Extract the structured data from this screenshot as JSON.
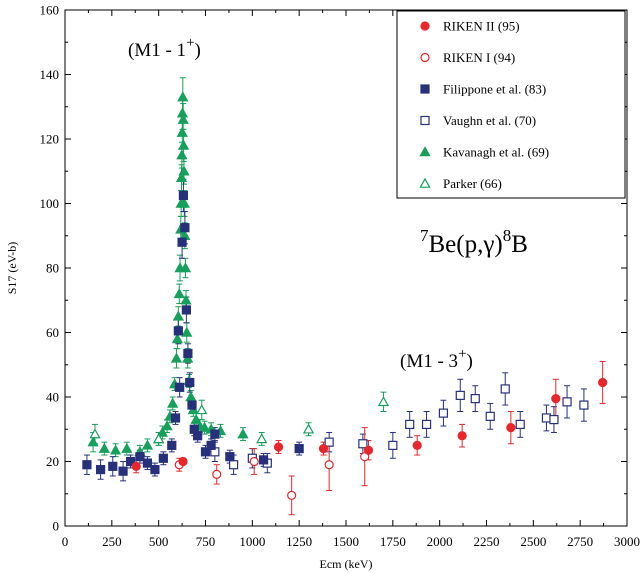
{
  "chart_data": {
    "type": "scatter",
    "xlabel": "Ecm (keV)",
    "ylabel": "S17 (eV-b)",
    "xlim": [
      0,
      3000
    ],
    "ylim": [
      0,
      160
    ],
    "xticks": [
      0,
      250,
      500,
      750,
      1000,
      1250,
      1500,
      1750,
      2000,
      2250,
      2500,
      2750,
      3000
    ],
    "yticks": [
      0,
      20,
      40,
      60,
      80,
      100,
      120,
      140,
      160
    ],
    "grid": false,
    "legend_position": "top-right",
    "annotations": {
      "reaction": {
        "pre": "7",
        "a": "Be(p,",
        "g": "γ",
        "b": ")",
        "mid": "8",
        "post": "B"
      },
      "peak1": {
        "pre": "(M1 - 1",
        "sup": "+",
        "post": ")"
      },
      "peak2": {
        "pre": "(M1 - 3",
        "sup": "+",
        "post": ")"
      }
    },
    "series": [
      {
        "name": "RIKEN II (95)",
        "marker": "circle-filled",
        "color": "#e8262b",
        "points": [
          {
            "x": 380,
            "y": 18.5,
            "err": 2
          },
          {
            "x": 630,
            "y": 20,
            "err": 1
          },
          {
            "x": 1140,
            "y": 24.5,
            "err": 2
          },
          {
            "x": 1380,
            "y": 24,
            "err": 2
          },
          {
            "x": 1620,
            "y": 23.5,
            "err": 3
          },
          {
            "x": 1880,
            "y": 25,
            "err": 3
          },
          {
            "x": 2120,
            "y": 28,
            "err": 3.5
          },
          {
            "x": 2380,
            "y": 30.5,
            "err": 5
          },
          {
            "x": 2620,
            "y": 39.5,
            "err": 6
          },
          {
            "x": 2870,
            "y": 44.5,
            "err": 6.5
          }
        ]
      },
      {
        "name": "RIKEN I (94)",
        "marker": "circle-open",
        "color": "#e8262b",
        "points": [
          {
            "x": 610,
            "y": 19,
            "err": 2
          },
          {
            "x": 810,
            "y": 16,
            "err": 3
          },
          {
            "x": 1010,
            "y": 20,
            "err": 4
          },
          {
            "x": 1210,
            "y": 9.5,
            "err": 6
          },
          {
            "x": 1410,
            "y": 19,
            "err": 8
          },
          {
            "x": 1600,
            "y": 21.5,
            "err": 9
          }
        ]
      },
      {
        "name": "Filippone et al. (83)",
        "marker": "square-filled",
        "color": "#27307a",
        "points": [
          {
            "x": 117,
            "y": 19,
            "err": 3
          },
          {
            "x": 190,
            "y": 17.5,
            "err": 3
          },
          {
            "x": 255,
            "y": 18.5,
            "err": 3
          },
          {
            "x": 310,
            "y": 17,
            "err": 3
          },
          {
            "x": 350,
            "y": 20,
            "err": 2
          },
          {
            "x": 400,
            "y": 21.5,
            "err": 2
          },
          {
            "x": 440,
            "y": 19.5,
            "err": 2
          },
          {
            "x": 480,
            "y": 17.5,
            "err": 2
          },
          {
            "x": 525,
            "y": 21,
            "err": 2
          },
          {
            "x": 570,
            "y": 25,
            "err": 2
          },
          {
            "x": 590,
            "y": 33.5,
            "err": 2
          },
          {
            "x": 605,
            "y": 60.5,
            "err": 4
          },
          {
            "x": 612,
            "y": 43,
            "err": 3
          },
          {
            "x": 625,
            "y": 88,
            "err": 5
          },
          {
            "x": 632,
            "y": 102.5,
            "err": 5
          },
          {
            "x": 640,
            "y": 92.5,
            "err": 5
          },
          {
            "x": 648,
            "y": 67,
            "err": 4
          },
          {
            "x": 656,
            "y": 53.5,
            "err": 3
          },
          {
            "x": 666,
            "y": 44.5,
            "err": 3
          },
          {
            "x": 678,
            "y": 37.5,
            "err": 2
          },
          {
            "x": 690,
            "y": 30,
            "err": 2
          },
          {
            "x": 708,
            "y": 28,
            "err": 2
          },
          {
            "x": 750,
            "y": 23,
            "err": 2
          },
          {
            "x": 780,
            "y": 25,
            "err": 2
          },
          {
            "x": 800,
            "y": 28.5,
            "err": 2
          },
          {
            "x": 880,
            "y": 21.5,
            "err": 2
          },
          {
            "x": 1060,
            "y": 20.5,
            "err": 2
          },
          {
            "x": 1250,
            "y": 24,
            "err": 2
          }
        ]
      },
      {
        "name": "Vaughn et al. (70)",
        "marker": "square-open",
        "color": "#27307a",
        "points": [
          {
            "x": 800,
            "y": 23,
            "err": 3
          },
          {
            "x": 900,
            "y": 19,
            "err": 3
          },
          {
            "x": 1000,
            "y": 21,
            "err": 3
          },
          {
            "x": 1080,
            "y": 19.5,
            "err": 3
          },
          {
            "x": 1410,
            "y": 26,
            "err": 3
          },
          {
            "x": 1590,
            "y": 25.5,
            "err": 3
          },
          {
            "x": 1750,
            "y": 25,
            "err": 4
          },
          {
            "x": 1840,
            "y": 31.5,
            "err": 4
          },
          {
            "x": 1930,
            "y": 31.5,
            "err": 4
          },
          {
            "x": 2020,
            "y": 35,
            "err": 4
          },
          {
            "x": 2110,
            "y": 40.5,
            "err": 5
          },
          {
            "x": 2190,
            "y": 39.5,
            "err": 4
          },
          {
            "x": 2270,
            "y": 34,
            "err": 4
          },
          {
            "x": 2350,
            "y": 42.5,
            "err": 5
          },
          {
            "x": 2430,
            "y": 31.5,
            "err": 4
          },
          {
            "x": 2570,
            "y": 33.5,
            "err": 4
          },
          {
            "x": 2610,
            "y": 33,
            "err": 4
          },
          {
            "x": 2680,
            "y": 38.5,
            "err": 5
          },
          {
            "x": 2770,
            "y": 37.5,
            "err": 5
          }
        ]
      },
      {
        "name": "Kavanagh et al. (69)",
        "marker": "triangle-filled",
        "color": "#17a05c",
        "points": [
          {
            "x": 150,
            "y": 26,
            "err": 3
          },
          {
            "x": 210,
            "y": 24,
            "err": 2
          },
          {
            "x": 270,
            "y": 23.5,
            "err": 2
          },
          {
            "x": 330,
            "y": 24,
            "err": 2
          },
          {
            "x": 400,
            "y": 23,
            "err": 2
          },
          {
            "x": 440,
            "y": 25,
            "err": 2
          },
          {
            "x": 500,
            "y": 27,
            "err": 2
          },
          {
            "x": 520,
            "y": 29,
            "err": 2
          },
          {
            "x": 545,
            "y": 31,
            "err": 2
          },
          {
            "x": 560,
            "y": 34,
            "err": 2
          },
          {
            "x": 575,
            "y": 38,
            "err": 2
          },
          {
            "x": 585,
            "y": 44,
            "err": 2
          },
          {
            "x": 595,
            "y": 52,
            "err": 3
          },
          {
            "x": 600,
            "y": 58,
            "err": 3
          },
          {
            "x": 605,
            "y": 65,
            "err": 3
          },
          {
            "x": 610,
            "y": 72,
            "err": 3
          },
          {
            "x": 614,
            "y": 80,
            "err": 4
          },
          {
            "x": 618,
            "y": 92,
            "err": 4
          },
          {
            "x": 620,
            "y": 100,
            "err": 4
          },
          {
            "x": 622,
            "y": 108,
            "err": 4
          },
          {
            "x": 624,
            "y": 115,
            "err": 4
          },
          {
            "x": 626,
            "y": 122,
            "err": 5
          },
          {
            "x": 627,
            "y": 128,
            "err": 5
          },
          {
            "x": 629,
            "y": 133,
            "err": 6
          },
          {
            "x": 631,
            "y": 126,
            "err": 5
          },
          {
            "x": 633,
            "y": 118,
            "err": 5
          },
          {
            "x": 635,
            "y": 110,
            "err": 4
          },
          {
            "x": 637,
            "y": 100,
            "err": 4
          },
          {
            "x": 640,
            "y": 90,
            "err": 4
          },
          {
            "x": 643,
            "y": 80,
            "err": 3
          },
          {
            "x": 646,
            "y": 70,
            "err": 3
          },
          {
            "x": 650,
            "y": 60,
            "err": 3
          },
          {
            "x": 655,
            "y": 52,
            "err": 3
          },
          {
            "x": 662,
            "y": 45,
            "err": 2
          },
          {
            "x": 672,
            "y": 40,
            "err": 2
          },
          {
            "x": 685,
            "y": 36,
            "err": 2
          },
          {
            "x": 700,
            "y": 33,
            "err": 2
          },
          {
            "x": 720,
            "y": 31,
            "err": 2
          },
          {
            "x": 745,
            "y": 30.5,
            "err": 2
          },
          {
            "x": 780,
            "y": 30,
            "err": 2
          },
          {
            "x": 830,
            "y": 29.5,
            "err": 2
          },
          {
            "x": 950,
            "y": 28.5,
            "err": 2
          }
        ]
      },
      {
        "name": "Parker (66)",
        "marker": "triangle-open",
        "color": "#17a05c",
        "points": [
          {
            "x": 160,
            "y": 28.5,
            "err": 3
          },
          {
            "x": 500,
            "y": 27,
            "err": 2
          },
          {
            "x": 730,
            "y": 36,
            "err": 3
          },
          {
            "x": 1050,
            "y": 27,
            "err": 2
          },
          {
            "x": 1300,
            "y": 30,
            "err": 2
          },
          {
            "x": 1700,
            "y": 38.5,
            "err": 3
          }
        ]
      }
    ]
  }
}
